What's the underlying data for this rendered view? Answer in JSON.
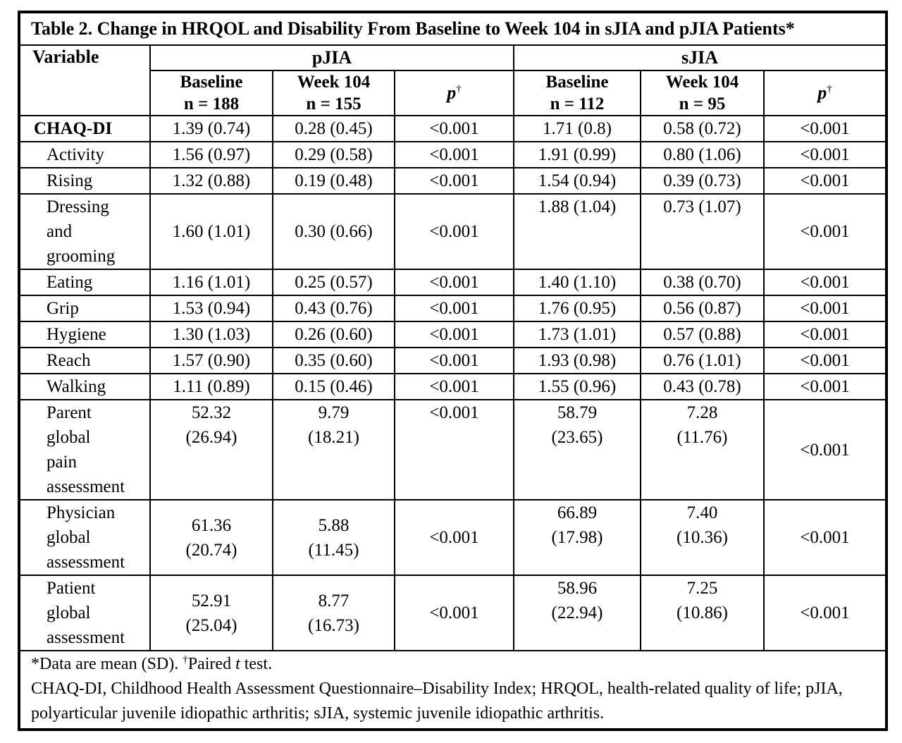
{
  "title": "Table 2. Change in HRQOL and Disability From Baseline to Week 104 in sJIA and pJIA Patients*",
  "header": {
    "variable": "Variable",
    "pjia": "pJIA",
    "sjia": "sJIA",
    "cols": [
      {
        "name": "Baseline",
        "n": "n = 188"
      },
      {
        "name": "Week 104",
        "n": "n = 155"
      },
      {
        "p": "p",
        "dagger": "†"
      },
      {
        "name": "Baseline",
        "n": "n = 112"
      },
      {
        "name": "Week 104",
        "n": "n = 95"
      },
      {
        "p": "p",
        "dagger": "†"
      }
    ]
  },
  "rows": [
    {
      "label": "CHAQ-DI",
      "style": "bold",
      "cells": [
        "1.39 (0.74)",
        "0.28 (0.45)",
        "<0.001",
        "1.71 (0.8)",
        "0.58 (0.72)",
        "<0.001"
      ]
    },
    {
      "label": "Activity",
      "cells": [
        "1.56 (0.97)",
        "0.29 (0.58)",
        "<0.001",
        "1.91 (0.99)",
        "0.80 (1.06)",
        "<0.001"
      ]
    },
    {
      "label": "Rising",
      "cells": [
        "1.32 (0.88)",
        "0.19 (0.48)",
        "<0.001",
        "1.54 (0.94)",
        "0.39 (0.73)",
        "<0.001"
      ]
    },
    {
      "label": "Dressing\nand\ngrooming",
      "cells": [
        "1.60 (1.01)",
        "0.30 (0.66)",
        "<0.001",
        "1.88 (1.04)",
        "0.73 (1.07)",
        "<0.001"
      ],
      "valign": [
        "mid",
        "mid",
        "mid",
        "top",
        "top",
        "mid"
      ]
    },
    {
      "label": "Eating",
      "cells": [
        "1.16 (1.01)",
        "0.25 (0.57)",
        "<0.001",
        "1.40 (1.10)",
        "0.38 (0.70)",
        "<0.001"
      ]
    },
    {
      "label": "Grip",
      "cells": [
        "1.53 (0.94)",
        "0.43 (0.76)",
        "<0.001",
        "1.76 (0.95)",
        "0.56 (0.87)",
        "<0.001"
      ]
    },
    {
      "label": "Hygiene",
      "cells": [
        "1.30 (1.03)",
        "0.26 (0.60)",
        "<0.001",
        "1.73 (1.01)",
        "0.57 (0.88)",
        "<0.001"
      ]
    },
    {
      "label": "Reach",
      "cells": [
        "1.57 (0.90)",
        "0.35 (0.60)",
        "<0.001",
        "1.93 (0.98)",
        "0.76 (1.01)",
        "<0.001"
      ]
    },
    {
      "label": "Walking",
      "cells": [
        "1.11 (0.89)",
        "0.15 (0.46)",
        "<0.001",
        "1.55 (0.96)",
        "0.43 (0.78)",
        "<0.001"
      ]
    },
    {
      "label": "Parent\nglobal\npain\nassessment",
      "cells": [
        "52.32\n(26.94)",
        "9.79\n(18.21)",
        "<0.001",
        "58.79\n(23.65)",
        "7.28\n(11.76)",
        "<0.001"
      ],
      "valign": [
        "top",
        "top",
        "top",
        "top",
        "top",
        "mid"
      ]
    },
    {
      "label": "Physician\nglobal\nassessment",
      "cells": [
        "61.36\n(20.74)",
        "5.88\n(11.45)",
        "<0.001",
        "66.89\n(17.98)",
        "7.40\n(10.36)",
        "<0.001"
      ],
      "valign": [
        "mid",
        "mid",
        "mid",
        "top",
        "top",
        "mid"
      ]
    },
    {
      "label": "Patient\nglobal\nassessment",
      "cells": [
        "52.91\n(25.04)",
        "8.77\n(16.73)",
        "<0.001",
        "58.96\n(22.94)",
        "7.25\n(10.86)",
        "<0.001"
      ],
      "valign": [
        "mid",
        "mid",
        "mid",
        "top",
        "top",
        "mid"
      ]
    }
  ],
  "footnotes": {
    "line1": {
      "star_text": "*Data are mean (SD). ",
      "dagger": "†",
      "paired": "Paired ",
      "t_italic": "t",
      "test": " test."
    },
    "line2": "CHAQ-DI, Childhood Health Assessment Questionnaire–Disability Index; HRQOL, health-related quality of life; pJIA, polyarticular juvenile idiopathic arthritis; sJIA, systemic juvenile idiopathic arthritis."
  },
  "colors": {
    "text": "#000000",
    "border": "#000000",
    "background": "#ffffff"
  }
}
